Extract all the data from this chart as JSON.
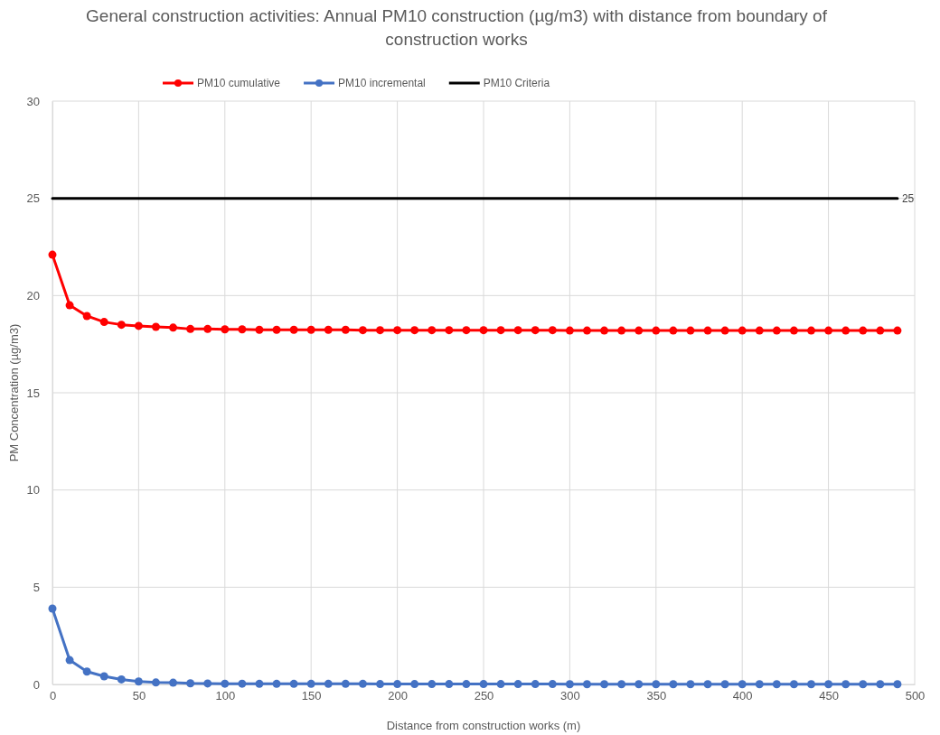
{
  "chart_data": {
    "type": "line",
    "title": "General construction activities: Annual PM10 construction (µg/m3) with distance from boundary of construction works",
    "xlabel": "Distance from construction works (m)",
    "ylabel": "PM Concentration (µg/m3)",
    "x": [
      0,
      10,
      20,
      30,
      40,
      50,
      60,
      70,
      80,
      90,
      100,
      110,
      120,
      130,
      140,
      150,
      160,
      170,
      180,
      190,
      200,
      210,
      220,
      230,
      240,
      250,
      260,
      270,
      280,
      290,
      300,
      310,
      320,
      330,
      340,
      350,
      360,
      370,
      380,
      390,
      400,
      410,
      420,
      430,
      440,
      450,
      460,
      470,
      480,
      490
    ],
    "series": [
      {
        "name": "PM10 cumulative",
        "color": "#ff0000",
        "marker": "circle",
        "values": [
          22.1,
          19.5,
          18.95,
          18.64,
          18.5,
          18.44,
          18.39,
          18.35,
          18.28,
          18.28,
          18.26,
          18.26,
          18.24,
          18.24,
          18.24,
          18.24,
          18.24,
          18.24,
          18.22,
          18.22,
          18.22,
          18.22,
          18.22,
          18.22,
          18.22,
          18.22,
          18.22,
          18.22,
          18.22,
          18.22,
          18.2,
          18.2,
          18.2,
          18.2,
          18.2,
          18.2,
          18.2,
          18.2,
          18.2,
          18.2,
          18.2,
          18.2,
          18.2,
          18.2,
          18.2,
          18.2,
          18.2,
          18.2,
          18.2,
          18.2
        ]
      },
      {
        "name": "PM10 incremental",
        "color": "#4472c4",
        "marker": "circle",
        "values": [
          3.9,
          1.25,
          0.66,
          0.42,
          0.26,
          0.15,
          0.1,
          0.09,
          0.06,
          0.05,
          0.04,
          0.04,
          0.03,
          0.03,
          0.03,
          0.03,
          0.03,
          0.03,
          0.03,
          0.02,
          0.02,
          0.02,
          0.02,
          0.02,
          0.02,
          0.02,
          0.02,
          0.02,
          0.02,
          0.02,
          0.01,
          0.01,
          0.01,
          0.01,
          0.01,
          0.01,
          0.01,
          0.01,
          0.01,
          0.01,
          0.01,
          0.01,
          0.01,
          0.01,
          0.01,
          0.01,
          0.01,
          0.01,
          0.01,
          0.01
        ]
      },
      {
        "name": "PM10 Criteria",
        "color": "#000000",
        "marker": "none",
        "values": [
          25,
          25,
          25,
          25,
          25,
          25,
          25,
          25,
          25,
          25,
          25,
          25,
          25,
          25,
          25,
          25,
          25,
          25,
          25,
          25,
          25,
          25,
          25,
          25,
          25,
          25,
          25,
          25,
          25,
          25,
          25,
          25,
          25,
          25,
          25,
          25,
          25,
          25,
          25,
          25,
          25,
          25,
          25,
          25,
          25,
          25,
          25,
          25,
          25,
          25
        ],
        "value_labels": [
          null,
          null,
          null,
          null,
          null,
          null,
          null,
          null,
          null,
          null,
          null,
          null,
          null,
          null,
          null,
          null,
          null,
          null,
          null,
          null,
          null,
          null,
          null,
          null,
          null,
          null,
          null,
          null,
          null,
          null,
          null,
          null,
          null,
          null,
          null,
          null,
          null,
          null,
          null,
          null,
          null,
          null,
          null,
          null,
          null,
          null,
          null,
          null,
          null,
          "25"
        ]
      }
    ],
    "xlim": [
      0,
      500
    ],
    "xticks": [
      0,
      50,
      100,
      150,
      200,
      250,
      300,
      350,
      400,
      450,
      500
    ],
    "ylim": [
      0,
      30
    ],
    "yticks": [
      0,
      5,
      10,
      15,
      20,
      25,
      30
    ],
    "grid": true,
    "legend": "top",
    "line_style": "solid"
  }
}
